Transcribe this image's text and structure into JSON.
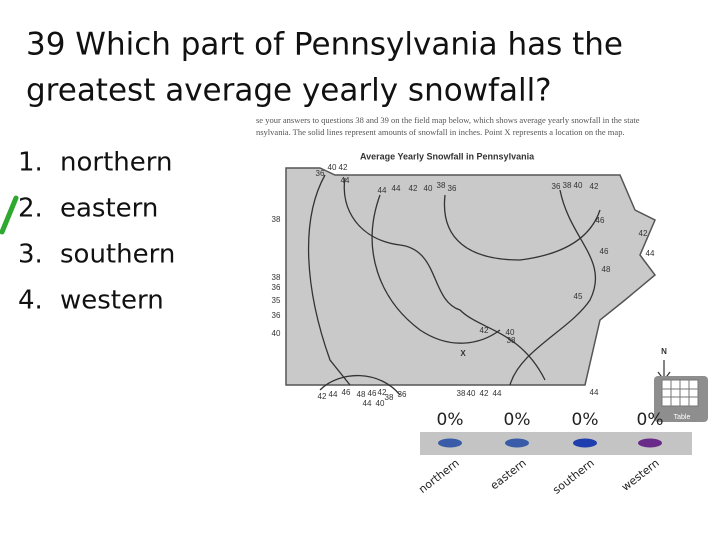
{
  "question": {
    "title_line1": "39 Which part of Pennsylvania has the",
    "title_line2": "greatest average yearly snowfall?"
  },
  "options": [
    {
      "number": "1.",
      "text": "northern"
    },
    {
      "number": "2.",
      "text": "eastern"
    },
    {
      "number": "3.",
      "text": "southern"
    },
    {
      "number": "4.",
      "text": "western"
    }
  ],
  "map": {
    "caption_line1": "se your answers to questions 38 and 39 on the field map below, which shows average yearly snowfall in the state",
    "caption_line2": "nsylvania. The solid lines represent amounts of snowfall in inches. Point X represents a location on the map.",
    "title": "Average Yearly Snowfall in Pennsylvania",
    "labels": [
      "36",
      "40",
      "42",
      "44",
      "44",
      "44",
      "42",
      "40",
      "38",
      "36",
      "36",
      "38",
      "40",
      "42",
      "46",
      "42",
      "44",
      "46",
      "48",
      "45",
      "38",
      "38",
      "36",
      "35",
      "36",
      "40",
      "42",
      "40",
      "38",
      "X",
      "N",
      "42",
      "44",
      "46",
      "48",
      "46",
      "42",
      "38",
      "36",
      "44",
      "40",
      "38",
      "40",
      "42",
      "44",
      "44"
    ]
  },
  "poll": {
    "categories": [
      "northern",
      "eastern",
      "southern",
      "western"
    ],
    "values": [
      0,
      0,
      0,
      0
    ],
    "value_labels": [
      "0%",
      "0%",
      "0%",
      "0%"
    ],
    "colors": [
      "#3a5ba8",
      "#3a5ba8",
      "#1f3fae",
      "#6a2a8a"
    ],
    "icon_label": "Table"
  }
}
